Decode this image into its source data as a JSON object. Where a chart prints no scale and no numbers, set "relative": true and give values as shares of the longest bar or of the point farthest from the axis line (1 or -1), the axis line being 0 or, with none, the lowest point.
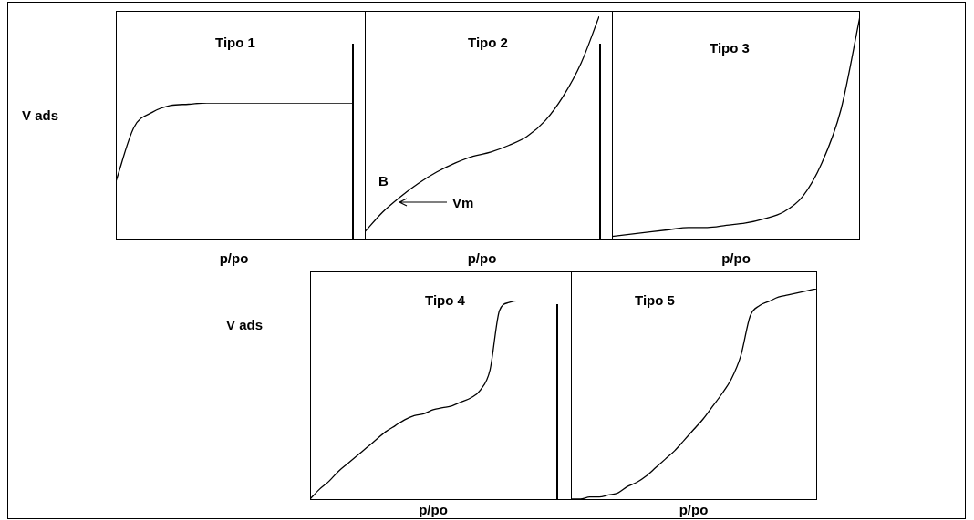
{
  "chart_data": [
    {
      "type": "line",
      "title": "Tipo 1",
      "xlabel": "p/po",
      "ylabel": "V ads",
      "relative": true,
      "color": "#000000",
      "categories": [
        null,
        null,
        null,
        null,
        null,
        null,
        null,
        null,
        null,
        null,
        null,
        null,
        null,
        null
      ],
      "values": [
        0.42,
        0.82,
        0.93,
        0.98,
        0.99,
        1,
        1,
        1,
        1,
        1,
        1,
        1,
        1,
        1
      ]
    },
    {
      "type": "line",
      "title": "Tipo 2",
      "xlabel": "p/po",
      "relative": true,
      "color": "#000000",
      "annotations": [
        "B",
        "Vm"
      ],
      "categories": [
        null,
        null,
        null,
        null,
        null,
        null,
        null,
        null,
        null,
        null,
        null,
        null,
        null,
        null
      ],
      "values": [
        0.03,
        0.12,
        0.19,
        0.25,
        0.3,
        0.34,
        0.37,
        0.39,
        0.42,
        0.46,
        0.53,
        0.64,
        0.79,
        1
      ]
    },
    {
      "type": "line",
      "title": "Tipo 3",
      "xlabel": "p/po",
      "relative": true,
      "color": "#000000",
      "categories": [
        null,
        null,
        null,
        null,
        null,
        null,
        null,
        null,
        null,
        null,
        null,
        null,
        null,
        null
      ],
      "values": [
        0.01,
        0.02,
        0.03,
        0.04,
        0.05,
        0.05,
        0.06,
        0.07,
        0.09,
        0.12,
        0.19,
        0.34,
        0.58,
        1
      ]
    },
    {
      "type": "line",
      "title": "Tipo 4",
      "xlabel": "p/po",
      "ylabel": "V ads",
      "relative": true,
      "color": "#000000",
      "categories": [
        null,
        null,
        null,
        null,
        null,
        null,
        null,
        null,
        null,
        null,
        null,
        null,
        null,
        null,
        null,
        null,
        null,
        null,
        null,
        null,
        null,
        null,
        null,
        null,
        null,
        null,
        null
      ],
      "values": [
        0,
        0.05,
        0.09,
        0.14,
        0.18,
        0.22,
        0.26,
        0.3,
        0.34,
        0.37,
        0.4,
        0.42,
        0.43,
        0.45,
        0.46,
        0.47,
        0.49,
        0.51,
        0.55,
        0.65,
        0.95,
        0.99,
        1,
        1,
        1,
        1,
        1
      ]
    },
    {
      "type": "line",
      "title": "Tipo 5",
      "xlabel": "p/po",
      "relative": true,
      "color": "#000000",
      "categories": [
        null,
        null,
        null,
        null,
        null,
        null,
        null,
        null,
        null,
        null,
        null,
        null,
        null,
        null,
        null,
        null,
        null,
        null,
        null,
        null,
        null,
        null,
        null,
        null,
        null,
        null,
        null
      ],
      "values": [
        0,
        0,
        0.01,
        0.01,
        0.02,
        0.03,
        0.06,
        0.08,
        0.11,
        0.15,
        0.19,
        0.23,
        0.28,
        0.33,
        0.38,
        0.44,
        0.5,
        0.57,
        0.68,
        0.87,
        0.92,
        0.94,
        0.96,
        0.97,
        0.98,
        0.99,
        1
      ]
    }
  ]
}
